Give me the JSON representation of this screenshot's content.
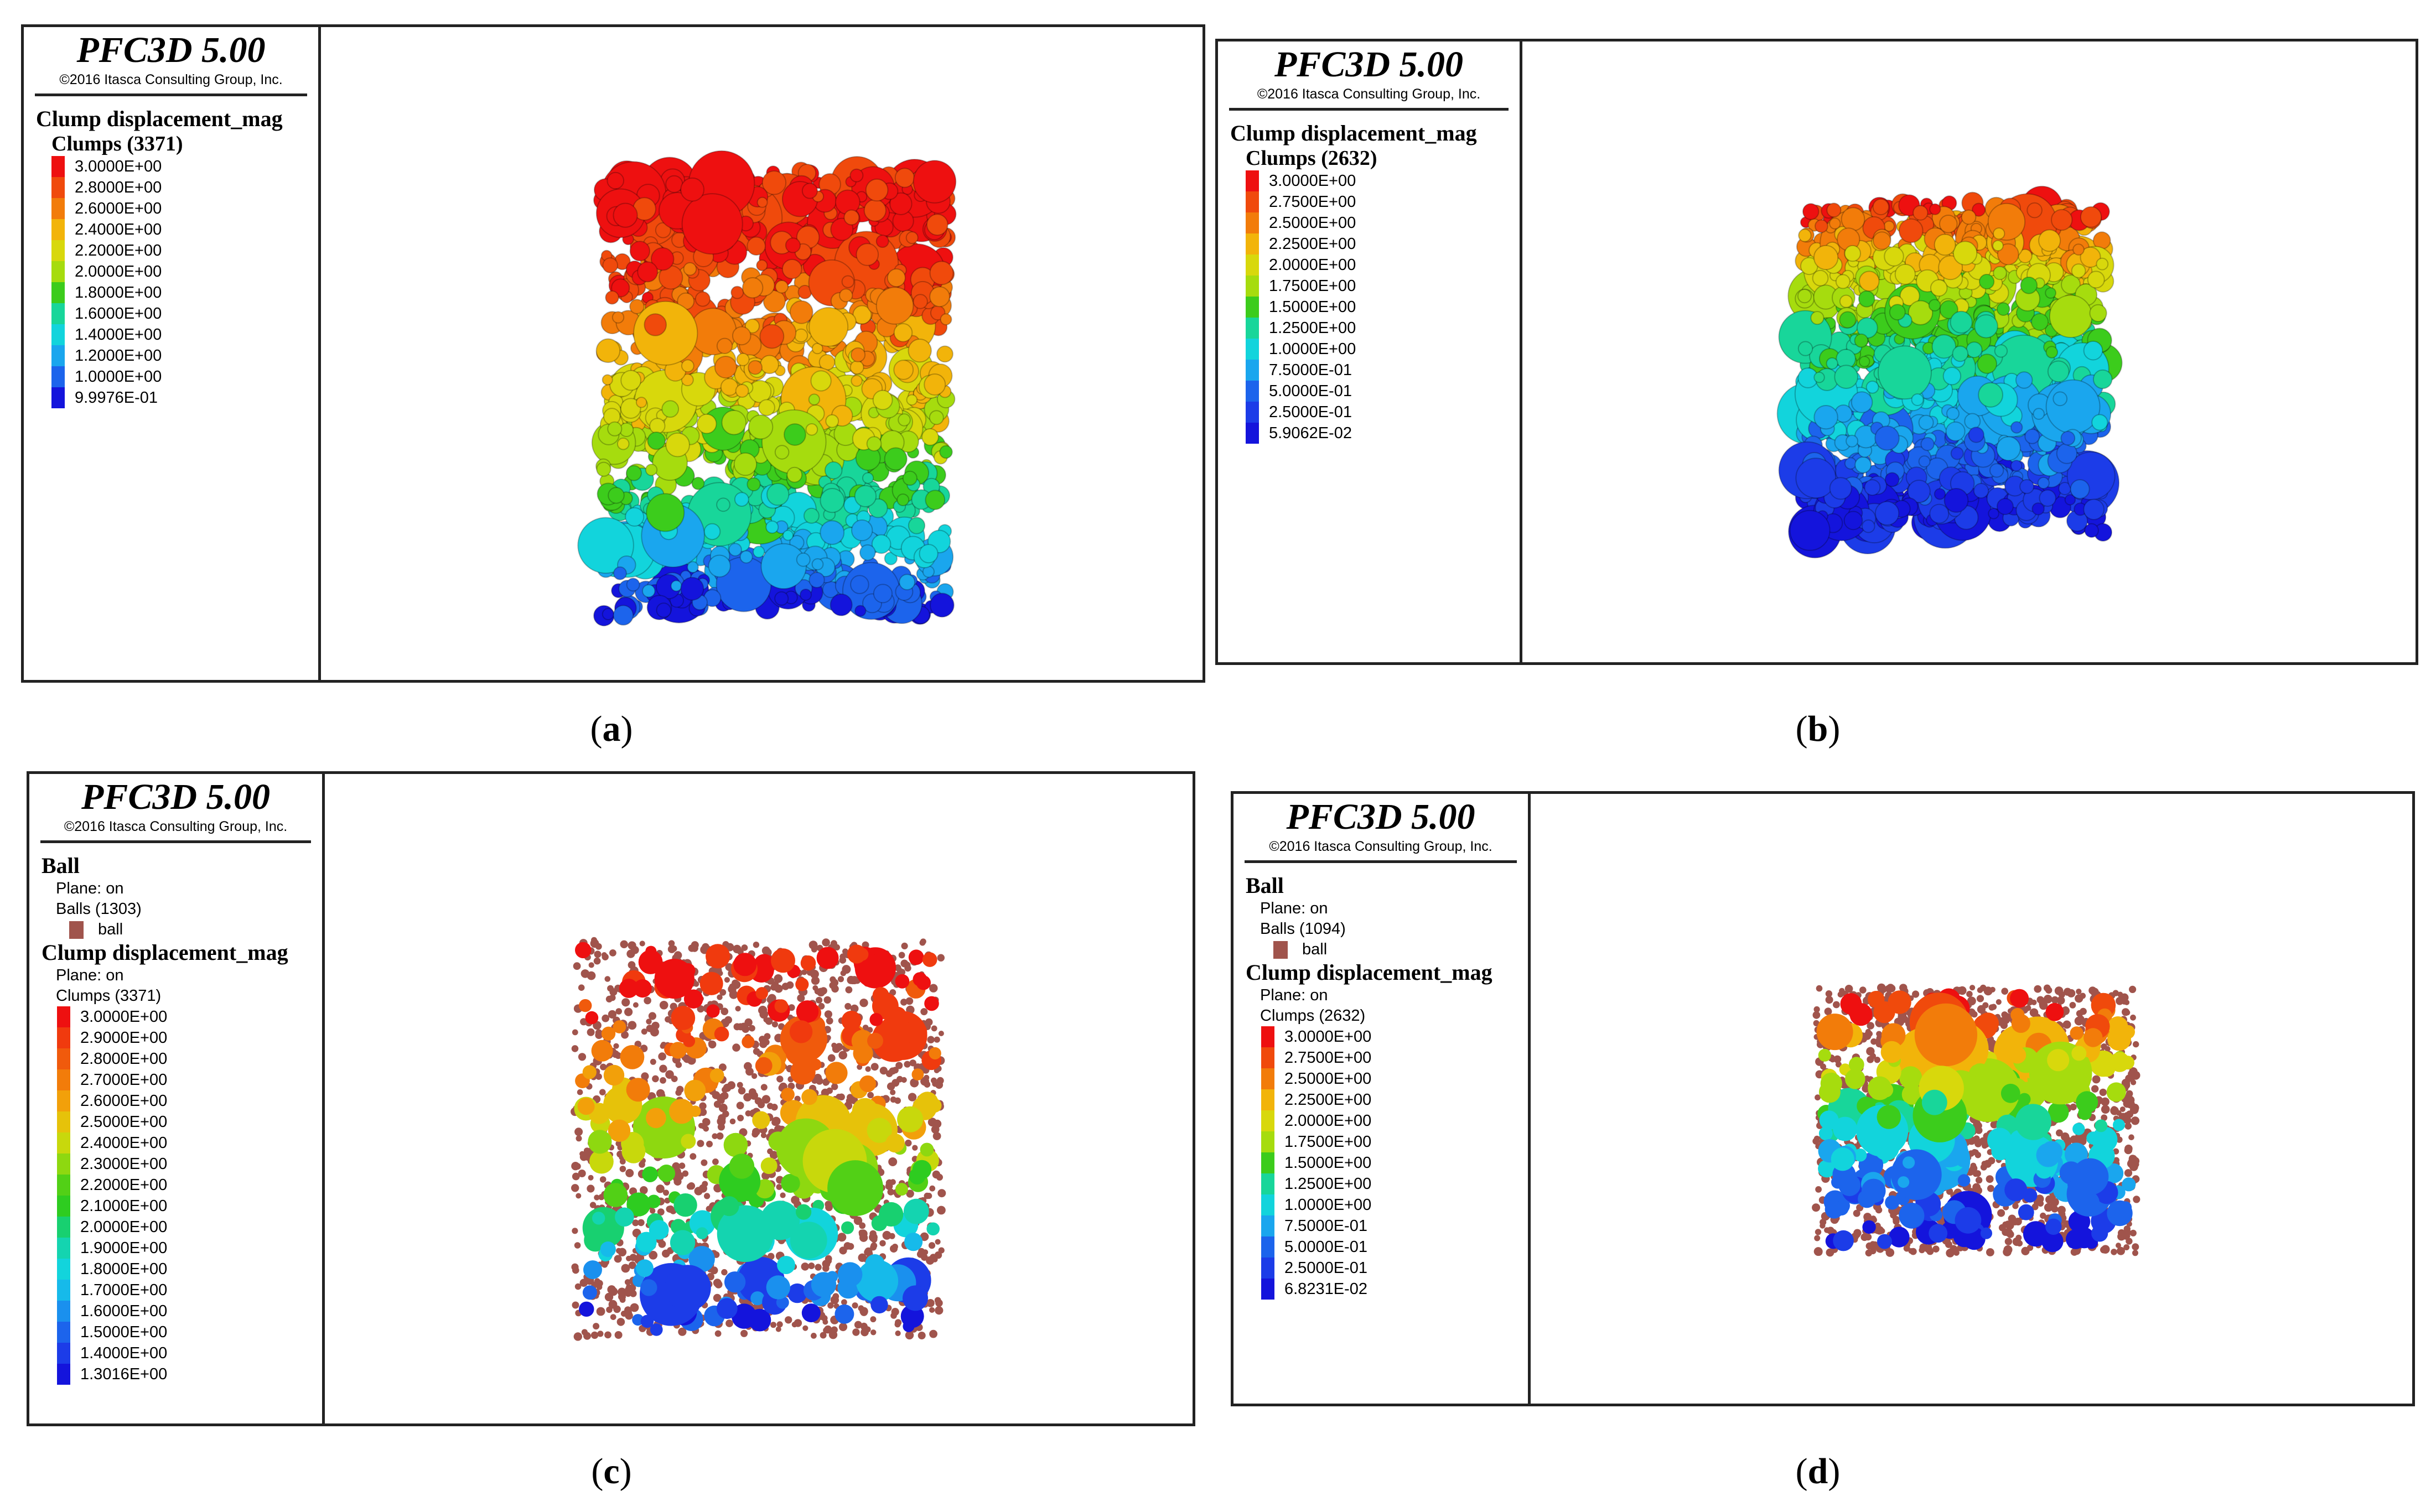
{
  "app": {
    "title": "PFC3D 5.00",
    "copyright": "©2016 Itasca Consulting Group, Inc."
  },
  "panels": {
    "a": {
      "caption_letter": "a",
      "clump_title": "Clump displacement_mag",
      "clumps_label": "Clumps (3371)",
      "colorbar": [
        {
          "label": "3.0000E+00",
          "color": "#ee1010"
        },
        {
          "label": "2.8000E+00",
          "color": "#f04a0c"
        },
        {
          "label": "2.6000E+00",
          "color": "#f27c0a"
        },
        {
          "label": "2.4000E+00",
          "color": "#f2b40a"
        },
        {
          "label": "2.2000E+00",
          "color": "#d8d80c"
        },
        {
          "label": "2.0000E+00",
          "color": "#a6dc0e"
        },
        {
          "label": "1.8000E+00",
          "color": "#3ccc1c"
        },
        {
          "label": "1.6000E+00",
          "color": "#18d69a"
        },
        {
          "label": "1.4000E+00",
          "color": "#12d4dc"
        },
        {
          "label": "1.2000E+00",
          "color": "#1aa6ee"
        },
        {
          "label": "1.0000E+00",
          "color": "#1c64ec"
        },
        {
          "label": "9.9976E-01",
          "color": "#1414dc"
        }
      ]
    },
    "b": {
      "caption_letter": "b",
      "clump_title": "Clump displacement_mag",
      "clumps_label": "Clumps (2632)",
      "colorbar": [
        {
          "label": "3.0000E+00",
          "color": "#ee1010"
        },
        {
          "label": "2.7500E+00",
          "color": "#f04a0c"
        },
        {
          "label": "2.5000E+00",
          "color": "#f27c0a"
        },
        {
          "label": "2.2500E+00",
          "color": "#f2b40a"
        },
        {
          "label": "2.0000E+00",
          "color": "#d8d80c"
        },
        {
          "label": "1.7500E+00",
          "color": "#a6dc0e"
        },
        {
          "label": "1.5000E+00",
          "color": "#3ccc1c"
        },
        {
          "label": "1.2500E+00",
          "color": "#18d69a"
        },
        {
          "label": "1.0000E+00",
          "color": "#12d4dc"
        },
        {
          "label": "7.5000E-01",
          "color": "#1aa6ee"
        },
        {
          "label": "5.0000E-01",
          "color": "#1c64ec"
        },
        {
          "label": "2.5000E-01",
          "color": "#1c3ce8"
        },
        {
          "label": "5.9062E-02",
          "color": "#1414dc"
        }
      ]
    },
    "c": {
      "caption_letter": "c",
      "ball_title": "Ball",
      "plane_on": "Plane: on",
      "balls_label": "Balls (1303)",
      "ball_item": "ball",
      "clump_title": "Clump displacement_mag",
      "clump_plane_on": "Plane: on",
      "clumps_label": "Clumps (3371)",
      "colorbar": [
        {
          "label": "3.0000E+00",
          "color": "#ee1010"
        },
        {
          "label": "2.9000E+00",
          "color": "#f03a0e"
        },
        {
          "label": "2.8000E+00",
          "color": "#f05a0c"
        },
        {
          "label": "2.7000E+00",
          "color": "#f27c0a"
        },
        {
          "label": "2.6000E+00",
          "color": "#f2a00a"
        },
        {
          "label": "2.5000E+00",
          "color": "#e6c20a"
        },
        {
          "label": "2.4000E+00",
          "color": "#c8d80c"
        },
        {
          "label": "2.3000E+00",
          "color": "#8ed810"
        },
        {
          "label": "2.2000E+00",
          "color": "#52d016"
        },
        {
          "label": "2.1000E+00",
          "color": "#2ecc20"
        },
        {
          "label": "2.0000E+00",
          "color": "#18d070"
        },
        {
          "label": "1.9000E+00",
          "color": "#14d4b0"
        },
        {
          "label": "1.8000E+00",
          "color": "#12d4dc"
        },
        {
          "label": "1.7000E+00",
          "color": "#16baea"
        },
        {
          "label": "1.6000E+00",
          "color": "#1a90ee"
        },
        {
          "label": "1.5000E+00",
          "color": "#1c64ec"
        },
        {
          "label": "1.4000E+00",
          "color": "#1c3ce8"
        },
        {
          "label": "1.3016E+00",
          "color": "#1414dc"
        }
      ]
    },
    "d": {
      "caption_letter": "d",
      "ball_title": "Ball",
      "plane_on": "Plane: on",
      "balls_label": "Balls (1094)",
      "ball_item": "ball",
      "clump_title": "Clump displacement_mag",
      "clump_plane_on": "Plane: on",
      "clumps_label": "Clumps (2632)",
      "colorbar": [
        {
          "label": "3.0000E+00",
          "color": "#ee1010"
        },
        {
          "label": "2.7500E+00",
          "color": "#f04a0c"
        },
        {
          "label": "2.5000E+00",
          "color": "#f27c0a"
        },
        {
          "label": "2.2500E+00",
          "color": "#f2b40a"
        },
        {
          "label": "2.0000E+00",
          "color": "#d8d80c"
        },
        {
          "label": "1.7500E+00",
          "color": "#a6dc0e"
        },
        {
          "label": "1.5000E+00",
          "color": "#3ccc1c"
        },
        {
          "label": "1.2500E+00",
          "color": "#18d69a"
        },
        {
          "label": "1.0000E+00",
          "color": "#12d4dc"
        },
        {
          "label": "7.5000E-01",
          "color": "#1aa6ee"
        },
        {
          "label": "5.0000E-01",
          "color": "#1c64ec"
        },
        {
          "label": "2.5000E-01",
          "color": "#1c3ce8"
        },
        {
          "label": "6.8231E-02",
          "color": "#1414dc"
        }
      ]
    }
  }
}
